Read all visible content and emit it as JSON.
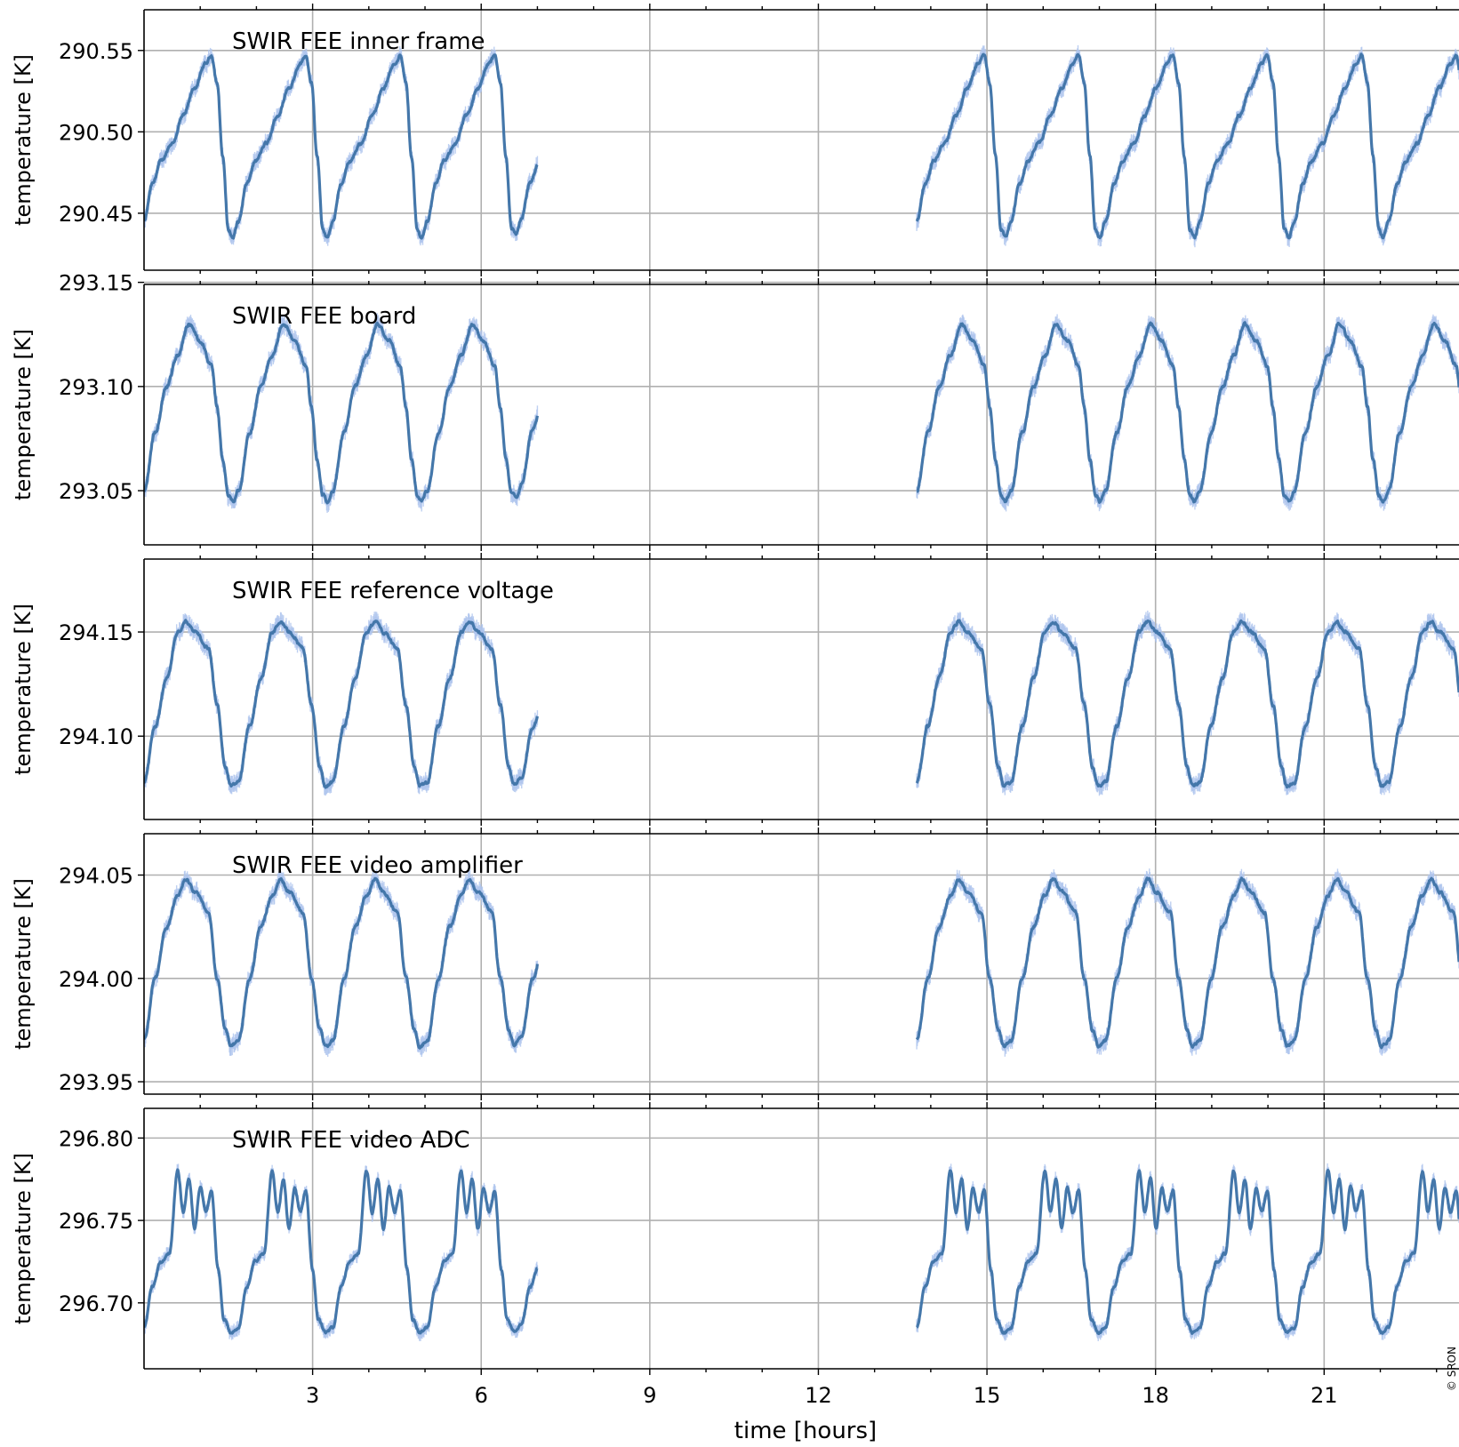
{
  "copyright": "© SRON",
  "colors": {
    "line": "#4477aa",
    "band": "#aec4ee",
    "grid": "#b0b0b0",
    "axes": "#000000"
  },
  "chart_data": [
    {
      "type": "line",
      "title": "SWIR FEE inner frame",
      "xlabel": "",
      "ylabel": "temperature [K]",
      "xlim": [
        0,
        23.4
      ],
      "ylim": [
        290.415,
        290.575
      ],
      "xticks": [
        3,
        6,
        9,
        12,
        15,
        18,
        21
      ],
      "yticks": [
        "290.45",
        "290.50",
        "290.55"
      ],
      "grid": true,
      "segments": [
        [
          0.0,
          7.0
        ],
        [
          13.75,
          23.4
        ]
      ],
      "orbit_period_hours": 1.68,
      "orbit_start_hours": [
        0.0,
        13.75
      ],
      "shape": [
        [
          0.0,
          290.445
        ],
        [
          0.15,
          290.468
        ],
        [
          0.3,
          290.482
        ],
        [
          0.5,
          290.493
        ],
        [
          0.7,
          290.51
        ],
        [
          0.9,
          290.527
        ],
        [
          1.1,
          290.542
        ],
        [
          1.2,
          290.547
        ],
        [
          1.3,
          290.53
        ],
        [
          1.4,
          290.485
        ],
        [
          1.5,
          290.44
        ],
        [
          1.58,
          290.435
        ],
        [
          1.68,
          290.445
        ]
      ],
      "noise": 0.006,
      "last_value": 290.473
    },
    {
      "type": "line",
      "title": "SWIR FEE board",
      "xlabel": "",
      "ylabel": "temperature [K]",
      "xlim": [
        0,
        23.4
      ],
      "ylim": [
        293.024,
        293.149
      ],
      "xticks": [
        3,
        6,
        9,
        12,
        15,
        18,
        21
      ],
      "yticks": [
        "293.05",
        "293.10",
        "293.15"
      ],
      "grid": true,
      "segments": [
        [
          0.0,
          7.0
        ],
        [
          13.75,
          23.4
        ]
      ],
      "orbit_period_hours": 1.68,
      "orbit_start_hours": [
        0.0,
        13.75
      ],
      "shape": [
        [
          0.0,
          293.05
        ],
        [
          0.2,
          293.078
        ],
        [
          0.4,
          293.1
        ],
        [
          0.6,
          293.115
        ],
        [
          0.8,
          293.13
        ],
        [
          1.0,
          293.122
        ],
        [
          1.2,
          293.11
        ],
        [
          1.3,
          293.09
        ],
        [
          1.4,
          293.065
        ],
        [
          1.5,
          293.048
        ],
        [
          1.58,
          293.045
        ],
        [
          1.68,
          293.05
        ]
      ],
      "noise": 0.005,
      "last_value": 293.088
    },
    {
      "type": "line",
      "title": "SWIR FEE reference voltage",
      "xlabel": "",
      "ylabel": "temperature [K]",
      "xlim": [
        0,
        23.4
      ],
      "ylim": [
        294.06,
        294.185
      ],
      "xticks": [
        3,
        6,
        9,
        12,
        15,
        18,
        21
      ],
      "yticks": [
        "294.10",
        "294.15"
      ],
      "grid": true,
      "segments": [
        [
          0.0,
          7.0
        ],
        [
          13.75,
          23.4
        ]
      ],
      "orbit_period_hours": 1.68,
      "orbit_start_hours": [
        0.0,
        13.75
      ],
      "shape": [
        [
          0.0,
          294.078
        ],
        [
          0.2,
          294.105
        ],
        [
          0.4,
          294.128
        ],
        [
          0.6,
          294.15
        ],
        [
          0.75,
          294.155
        ],
        [
          0.9,
          294.15
        ],
        [
          1.15,
          294.142
        ],
        [
          1.3,
          294.115
        ],
        [
          1.45,
          294.085
        ],
        [
          1.55,
          294.076
        ],
        [
          1.68,
          294.078
        ]
      ],
      "noise": 0.005,
      "last_value": 294.1
    },
    {
      "type": "line",
      "title": "SWIR FEE video amplifier",
      "xlabel": "",
      "ylabel": "temperature [K]",
      "xlim": [
        0,
        23.4
      ],
      "ylim": [
        293.944,
        294.07
      ],
      "xticks": [
        3,
        6,
        9,
        12,
        15,
        18,
        21
      ],
      "yticks": [
        "293.95",
        "294.00",
        "294.05"
      ],
      "grid": true,
      "segments": [
        [
          0.0,
          7.0
        ],
        [
          13.75,
          23.4
        ]
      ],
      "orbit_period_hours": 1.68,
      "orbit_start_hours": [
        0.0,
        13.75
      ],
      "shape": [
        [
          0.0,
          293.97
        ],
        [
          0.2,
          294.0
        ],
        [
          0.4,
          294.025
        ],
        [
          0.6,
          294.04
        ],
        [
          0.75,
          294.048
        ],
        [
          0.9,
          294.042
        ],
        [
          1.15,
          294.032
        ],
        [
          1.3,
          294.0
        ],
        [
          1.45,
          293.975
        ],
        [
          1.55,
          293.967
        ],
        [
          1.68,
          293.97
        ]
      ],
      "noise": 0.005,
      "last_value": 294.0
    },
    {
      "type": "line",
      "title": "SWIR FEE video ADC",
      "xlabel": "time [hours]",
      "ylabel": "temperature [K]",
      "xlim": [
        0,
        23.4
      ],
      "ylim": [
        296.66,
        296.818
      ],
      "xticks": [
        3,
        6,
        9,
        12,
        15,
        18,
        21
      ],
      "yticks": [
        "296.70",
        "296.75",
        "296.80"
      ],
      "grid": true,
      "segments": [
        [
          0.0,
          7.0
        ],
        [
          13.75,
          23.4
        ]
      ],
      "orbit_period_hours": 1.68,
      "orbit_start_hours": [
        0.0,
        13.75
      ],
      "shape": [
        [
          0.0,
          296.685
        ],
        [
          0.15,
          296.71
        ],
        [
          0.3,
          296.725
        ],
        [
          0.45,
          296.73
        ],
        [
          0.6,
          296.78
        ],
        [
          0.7,
          296.755
        ],
        [
          0.8,
          296.775
        ],
        [
          0.9,
          296.745
        ],
        [
          1.0,
          296.77
        ],
        [
          1.1,
          296.755
        ],
        [
          1.2,
          296.768
        ],
        [
          1.32,
          296.72
        ],
        [
          1.42,
          296.69
        ],
        [
          1.55,
          296.682
        ],
        [
          1.68,
          296.685
        ]
      ],
      "noise": 0.005,
      "last_value": 296.708
    }
  ]
}
